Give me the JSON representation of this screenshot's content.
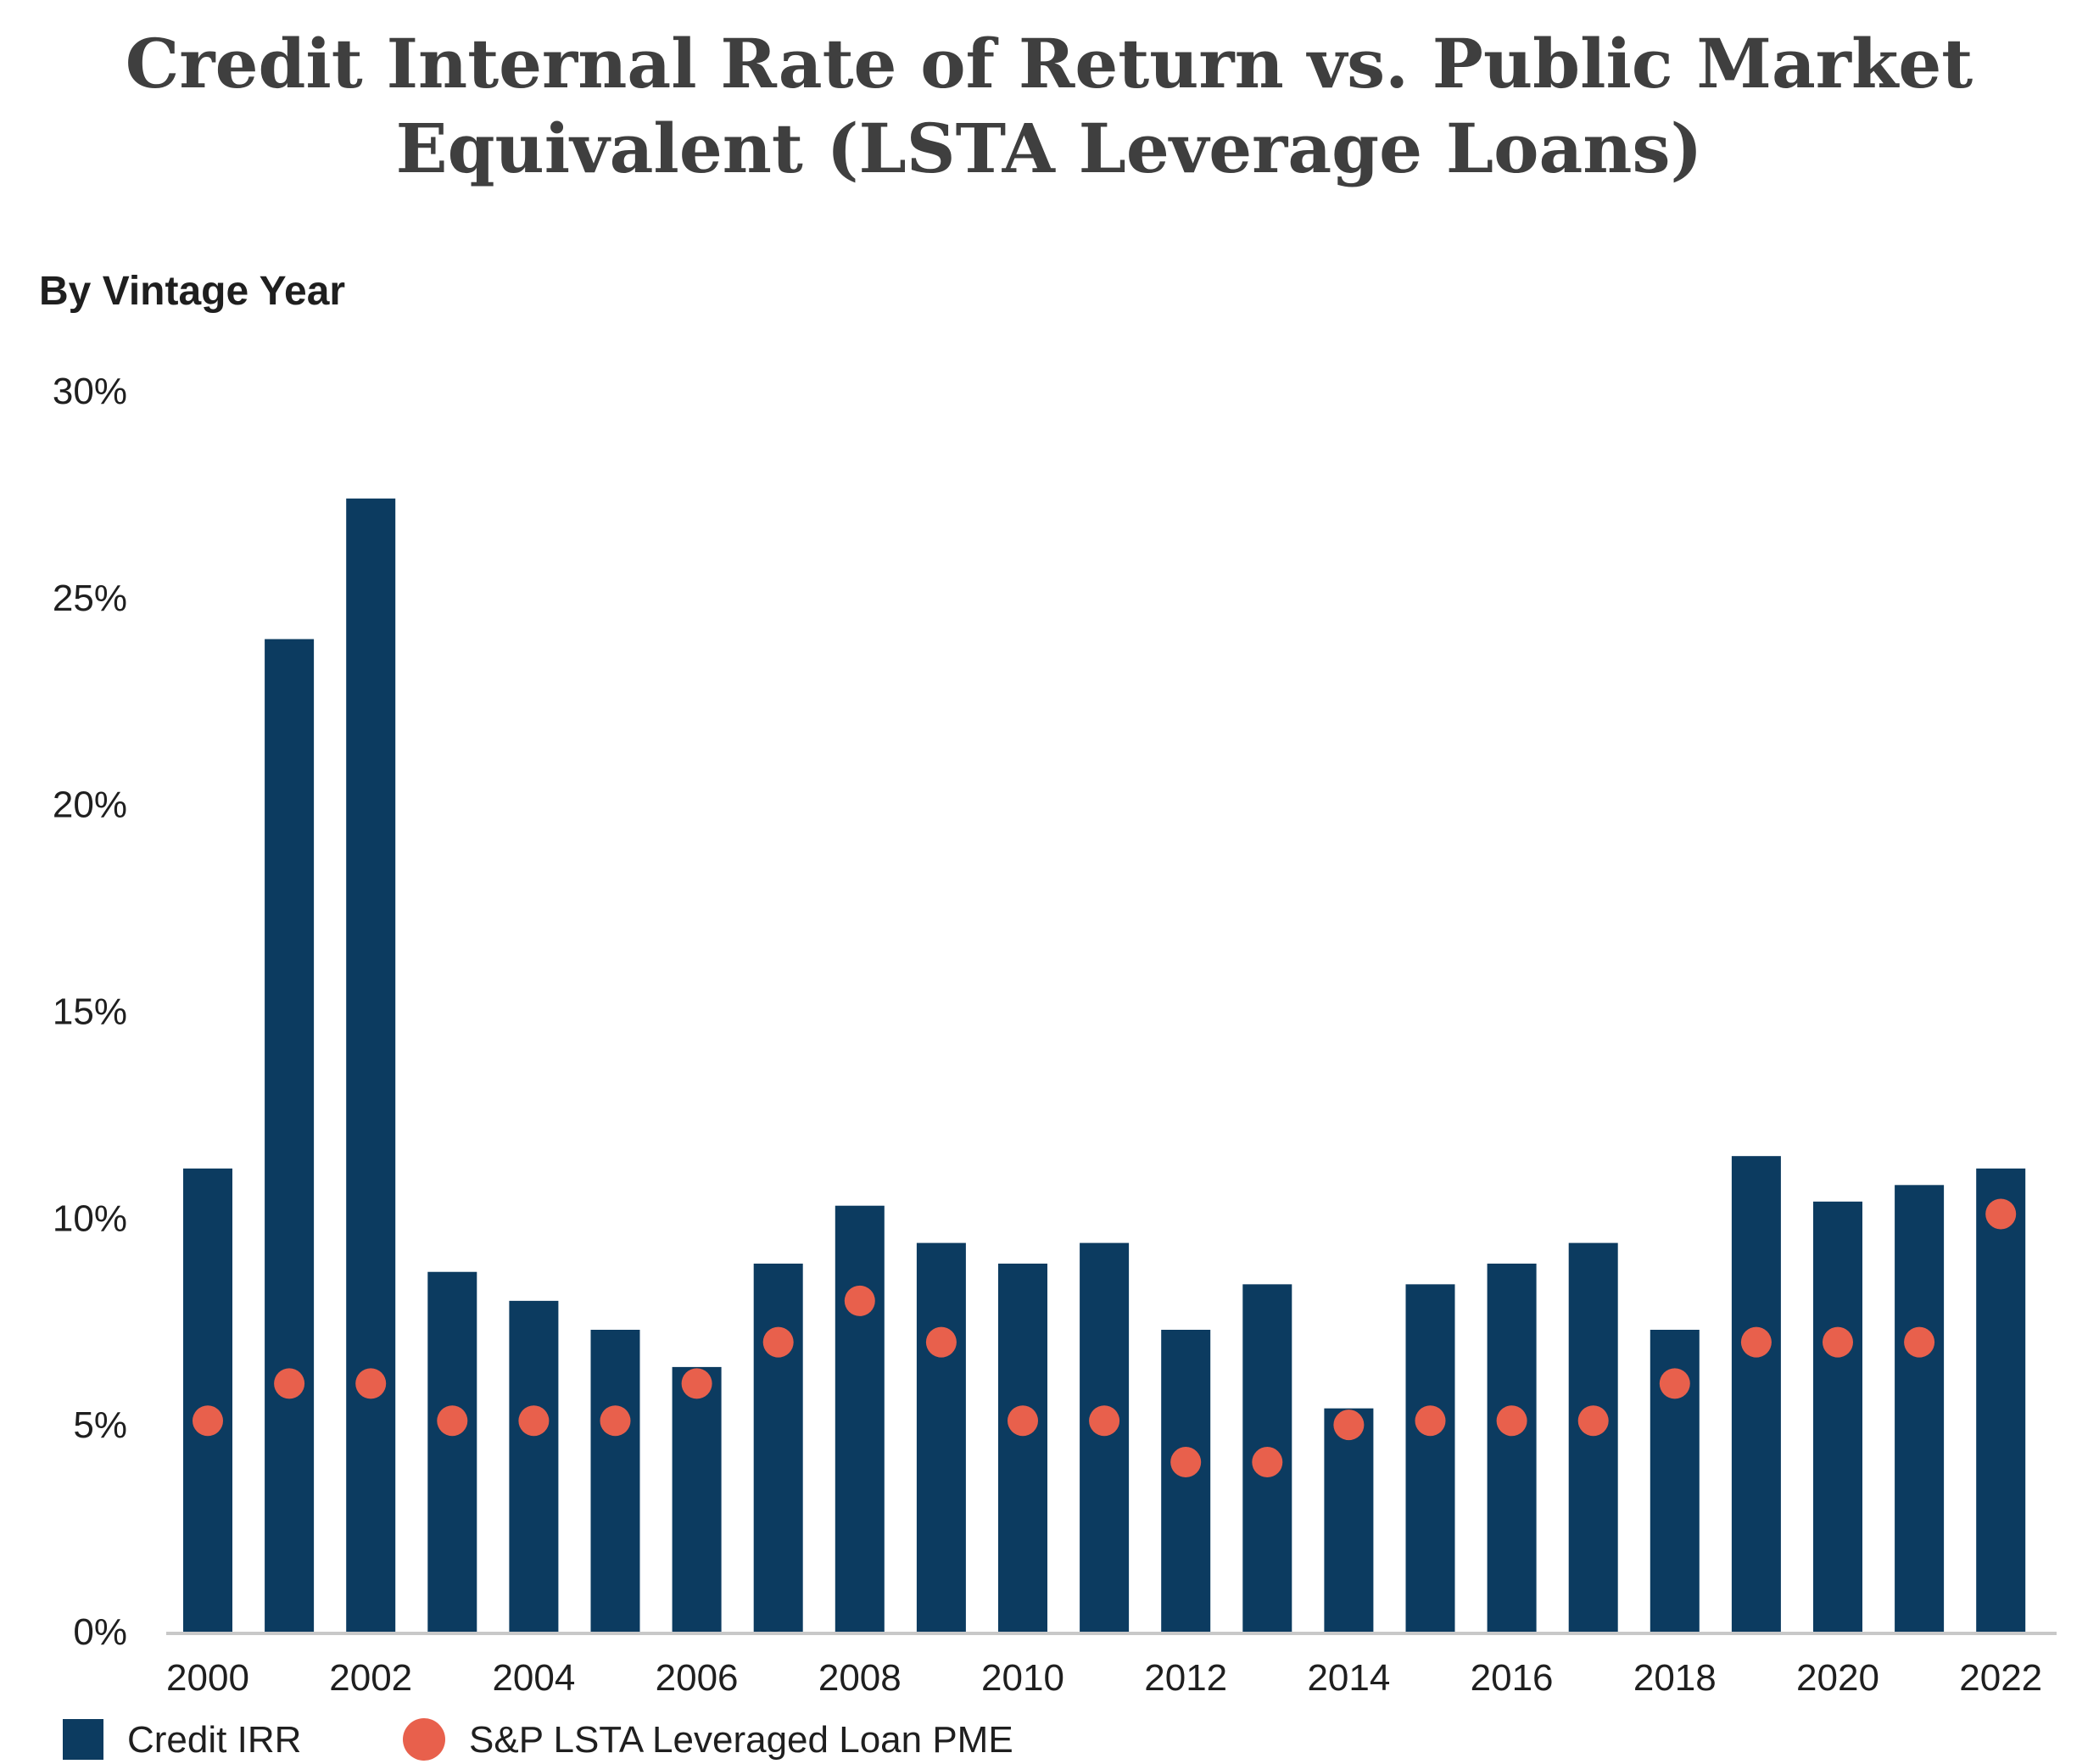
{
  "chart_data": {
    "type": "bar",
    "title_lines": [
      "Credit Internal Rate of Return vs. Public Market",
      "Equivalent (LSTA Leverage Loans)"
    ],
    "subtitle": "By Vintage Year",
    "categories": [
      2000,
      2001,
      2002,
      2003,
      2004,
      2005,
      2006,
      2007,
      2008,
      2009,
      2010,
      2011,
      2012,
      2013,
      2014,
      2015,
      2016,
      2017,
      2018,
      2019,
      2020,
      2021,
      2022
    ],
    "x_tick_labels": [
      "2000",
      "2002",
      "2004",
      "2006",
      "2008",
      "2010",
      "2012",
      "2014",
      "2016",
      "2018",
      "2020",
      "2022"
    ],
    "y_tick_labels": [
      "0%",
      "5%",
      "10%",
      "15%",
      "20%",
      "25%",
      "30%"
    ],
    "ylim": [
      0,
      30
    ],
    "series": [
      {
        "name": "Credit IRR",
        "mark": "bar",
        "color": "#0c3b60",
        "values": [
          11.2,
          24.0,
          27.4,
          8.7,
          8.0,
          7.3,
          6.4,
          8.9,
          10.3,
          9.4,
          8.9,
          9.4,
          7.3,
          8.4,
          5.4,
          8.4,
          8.9,
          9.4,
          7.3,
          11.5,
          10.4,
          10.8,
          11.2
        ]
      },
      {
        "name": "S&P LSTA Leveraged Loan PME",
        "mark": "dot",
        "color": "#e8604c",
        "values": [
          5.1,
          6.0,
          6.0,
          5.1,
          5.1,
          5.1,
          6.0,
          7.0,
          8.0,
          7.0,
          5.1,
          5.1,
          4.1,
          4.1,
          5.0,
          5.1,
          5.1,
          5.1,
          6.0,
          7.0,
          7.0,
          7.0,
          10.1
        ]
      }
    ],
    "grid": false,
    "legend_position": "bottom-left"
  }
}
